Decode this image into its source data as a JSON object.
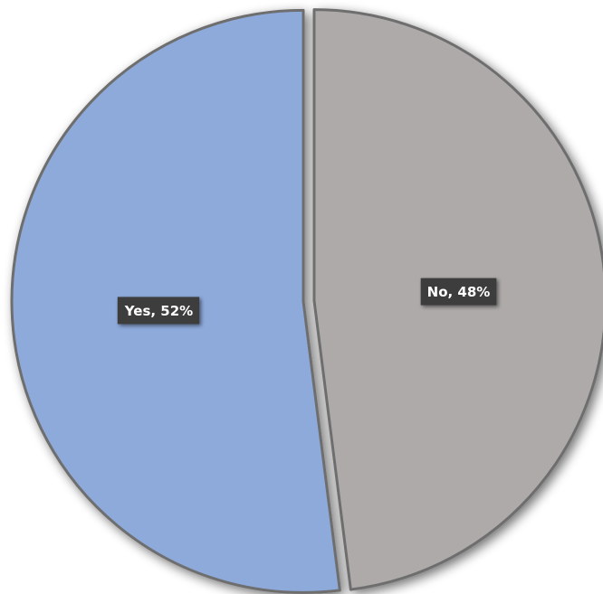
{
  "chart_data": {
    "type": "pie",
    "values": [
      52,
      48
    ],
    "value_labels": [
      "Yes, 52%",
      "No, 48%"
    ],
    "colors": [
      "#8eaadb",
      "#aeaaaa"
    ]
  }
}
